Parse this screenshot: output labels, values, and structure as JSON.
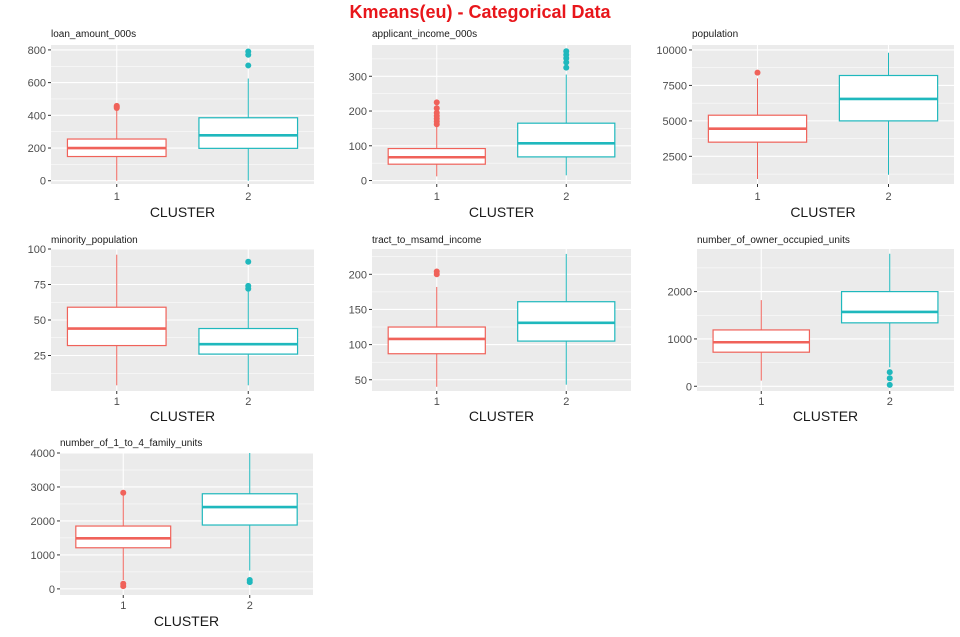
{
  "page": {
    "title": "Kmeans(eu) - Categorical Data"
  },
  "colors": {
    "cluster_1": "#f0625a",
    "cluster_2": "#1fb8bd",
    "panel_bg": "#ebebeb",
    "grid": "#ffffff"
  },
  "chart_data": [
    {
      "type": "boxplot",
      "title": "loan_amount_000s",
      "xlabel": "CLUSTER",
      "categories": [
        "1",
        "2"
      ],
      "ylim": [
        -20,
        830
      ],
      "yticks": [
        0,
        200,
        400,
        600,
        800
      ],
      "boxes": [
        {
          "cluster": "1",
          "whisker_low": 0,
          "q1": 148,
          "median": 200,
          "q3": 255,
          "whisker_high": 430,
          "outliers": [
            445,
            452,
            458
          ]
        },
        {
          "cluster": "2",
          "whisker_low": 0,
          "q1": 198,
          "median": 278,
          "q3": 385,
          "whisker_high": 625,
          "outliers": [
            705,
            770,
            790
          ]
        }
      ]
    },
    {
      "type": "boxplot",
      "title": "applicant_income_000s",
      "xlabel": "CLUSTER",
      "categories": [
        "1",
        "2"
      ],
      "ylim": [
        -10,
        390
      ],
      "yticks": [
        0,
        100,
        200,
        300
      ],
      "boxes": [
        {
          "cluster": "1",
          "whisker_low": 12,
          "q1": 47,
          "median": 67,
          "q3": 92,
          "whisker_high": 155,
          "outliers": [
            162,
            170,
            178,
            186,
            195,
            208,
            225
          ]
        },
        {
          "cluster": "2",
          "whisker_low": 15,
          "q1": 68,
          "median": 107,
          "q3": 165,
          "whisker_high": 305,
          "outliers": [
            325,
            340,
            352,
            362,
            372
          ]
        }
      ]
    },
    {
      "type": "boxplot",
      "title": "population",
      "xlabel": "CLUSTER",
      "categories": [
        "1",
        "2"
      ],
      "ylim": [
        550,
        10350
      ],
      "yticks": [
        2500,
        5000,
        7500,
        10000
      ],
      "boxes": [
        {
          "cluster": "1",
          "whisker_low": 900,
          "q1": 3500,
          "median": 4450,
          "q3": 5400,
          "whisker_high": 8000,
          "outliers": [
            8400
          ]
        },
        {
          "cluster": "2",
          "whisker_low": 1200,
          "q1": 5000,
          "median": 6550,
          "q3": 8200,
          "whisker_high": 9800,
          "outliers": []
        }
      ]
    },
    {
      "type": "boxplot",
      "title": "minority_population",
      "xlabel": "CLUSTER",
      "categories": [
        "1",
        "2"
      ],
      "ylim": [
        0,
        100
      ],
      "yticks": [
        25,
        50,
        75,
        100
      ],
      "boxes": [
        {
          "cluster": "1",
          "whisker_low": 4,
          "q1": 32,
          "median": 44,
          "q3": 59,
          "whisker_high": 96,
          "outliers": []
        },
        {
          "cluster": "2",
          "whisker_low": 4,
          "q1": 26,
          "median": 33,
          "q3": 44,
          "whisker_high": 70,
          "outliers": [
            72,
            74,
            91
          ]
        }
      ]
    },
    {
      "type": "boxplot",
      "title": "tract_to_msamd_income",
      "xlabel": "CLUSTER",
      "categories": [
        "1",
        "2"
      ],
      "ylim": [
        34,
        236
      ],
      "yticks": [
        50,
        100,
        150,
        200
      ],
      "boxes": [
        {
          "cluster": "1",
          "whisker_low": 40,
          "q1": 87,
          "median": 108,
          "q3": 125,
          "whisker_high": 182,
          "outliers": [
            200,
            204
          ]
        },
        {
          "cluster": "2",
          "whisker_low": 43,
          "q1": 105,
          "median": 131,
          "q3": 161,
          "whisker_high": 229,
          "outliers": []
        }
      ]
    },
    {
      "type": "boxplot",
      "title": "number_of_owner_occupied_units",
      "xlabel": "CLUSTER",
      "categories": [
        "1",
        "2"
      ],
      "ylim": [
        -100,
        2900
      ],
      "yticks": [
        0,
        1000,
        2000
      ],
      "boxes": [
        {
          "cluster": "1",
          "whisker_low": 120,
          "q1": 720,
          "median": 930,
          "q3": 1190,
          "whisker_high": 1820,
          "outliers": []
        },
        {
          "cluster": "2",
          "whisker_low": 400,
          "q1": 1340,
          "median": 1570,
          "q3": 2000,
          "whisker_high": 2800,
          "outliers": [
            30,
            170,
            300
          ]
        }
      ]
    },
    {
      "type": "boxplot",
      "title": "number_of_1_to_4_family_units",
      "xlabel": "CLUSTER",
      "categories": [
        "1",
        "2"
      ],
      "ylim": [
        -180,
        4000
      ],
      "yticks": [
        0,
        1000,
        2000,
        3000,
        4000
      ],
      "boxes": [
        {
          "cluster": "1",
          "whisker_low": 260,
          "q1": 1210,
          "median": 1490,
          "q3": 1850,
          "whisker_high": 2800,
          "outliers": [
            80,
            150,
            2830
          ]
        },
        {
          "cluster": "2",
          "whisker_low": 540,
          "q1": 1880,
          "median": 2410,
          "q3": 2800,
          "whisker_high": 4000,
          "outliers": [
            200,
            260
          ]
        }
      ]
    }
  ]
}
